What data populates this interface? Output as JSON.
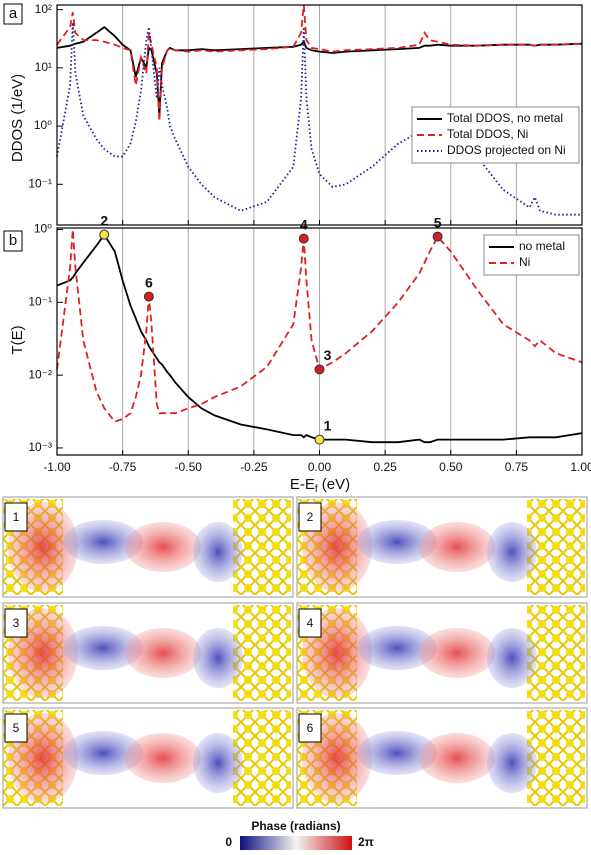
{
  "chart_data": [
    {
      "type": "line",
      "panel_label": "a",
      "ylabel": "DDOS (1/eV)",
      "log_y": true,
      "grid": true,
      "legend": "center right",
      "x": [
        -1.0,
        -0.95,
        -0.94,
        -0.93,
        -0.9,
        -0.85,
        -0.82,
        -0.78,
        -0.75,
        -0.72,
        -0.7,
        -0.68,
        -0.66,
        -0.65,
        -0.64,
        -0.62,
        -0.61,
        -0.6,
        -0.58,
        -0.57,
        -0.55,
        -0.5,
        -0.45,
        -0.4,
        -0.3,
        -0.2,
        -0.1,
        -0.07,
        -0.06,
        -0.05,
        -0.03,
        0,
        0.05,
        0.1,
        0.2,
        0.3,
        0.38,
        0.4,
        0.42,
        0.45,
        0.5,
        0.6,
        0.7,
        0.8,
        0.82,
        0.84,
        0.9,
        1.0
      ],
      "xlim": [
        -1,
        1
      ],
      "xticks": [
        -1,
        -0.75,
        -0.5,
        -0.25,
        0,
        0.25,
        0.5,
        0.75,
        1
      ],
      "ylim": [
        0.02,
        120
      ],
      "yticks": [
        {
          "value": 0.1,
          "label": "10⁻¹"
        },
        {
          "value": 1,
          "label": "10⁰"
        },
        {
          "value": 10,
          "label": "10¹"
        },
        {
          "value": 100,
          "label": "10²"
        }
      ],
      "series": [
        {
          "name": "Total DDOS, no metal",
          "color": "#000000",
          "dash": "solid",
          "values": [
            22,
            24,
            25,
            26,
            28,
            40,
            50,
            35,
            25,
            20,
            7,
            15,
            10,
            22,
            20,
            8,
            1.5,
            12,
            20,
            22,
            20,
            20,
            21,
            20,
            21,
            22,
            23,
            25,
            28,
            22,
            20,
            19,
            18,
            19,
            20,
            21,
            22,
            24,
            24,
            25,
            24,
            24,
            25,
            25,
            24,
            25,
            25,
            26
          ]
        },
        {
          "name": "Total DDOS, Ni",
          "color": "#e02020",
          "dash": "dashed",
          "values": [
            25,
            50,
            90,
            40,
            30,
            30,
            28,
            25,
            22,
            20,
            5,
            15,
            8,
            40,
            25,
            10,
            1.2,
            10,
            20,
            22,
            20,
            19,
            20,
            19,
            20,
            21,
            23,
            40,
            120,
            30,
            22,
            21,
            19,
            20,
            21,
            22,
            25,
            40,
            30,
            28,
            25,
            24,
            25,
            25,
            24,
            25,
            25,
            26
          ]
        },
        {
          "name": "DDOS projected on Ni",
          "color": "#1c1c9c",
          "dash": "dotted",
          "values": [
            0.3,
            5,
            60,
            8,
            1.5,
            0.6,
            0.4,
            0.3,
            0.3,
            0.5,
            1.2,
            4,
            30,
            50,
            20,
            3,
            10,
            5,
            2,
            1,
            0.6,
            0.2,
            0.1,
            0.06,
            0.035,
            0.05,
            0.2,
            3,
            50,
            3,
            0.4,
            0.15,
            0.09,
            0.1,
            0.2,
            0.5,
            0.8,
            0.9,
            1.0,
            1.1,
            0.8,
            0.3,
            0.08,
            0.04,
            0.06,
            0.035,
            0.03,
            0.03
          ]
        }
      ]
    },
    {
      "type": "line",
      "panel_label": "b",
      "ylabel": "T(E)",
      "log_y": true,
      "grid": true,
      "legend": "upper right",
      "xlabel": "E-E",
      "xlabel_sub": "f",
      "xlabel_unit": " (eV)",
      "x": [
        -1.0,
        -0.95,
        -0.94,
        -0.93,
        -0.9,
        -0.85,
        -0.82,
        -0.78,
        -0.75,
        -0.72,
        -0.7,
        -0.68,
        -0.66,
        -0.65,
        -0.64,
        -0.62,
        -0.61,
        -0.6,
        -0.58,
        -0.57,
        -0.55,
        -0.5,
        -0.45,
        -0.4,
        -0.3,
        -0.2,
        -0.1,
        -0.07,
        -0.06,
        -0.05,
        -0.03,
        0,
        0.05,
        0.1,
        0.2,
        0.3,
        0.38,
        0.4,
        0.42,
        0.45,
        0.5,
        0.6,
        0.7,
        0.8,
        0.82,
        0.84,
        0.9,
        1.0
      ],
      "xlim": [
        -1,
        1
      ],
      "xticks": [
        {
          "value": -1,
          "label": "-1.00"
        },
        {
          "value": -0.75,
          "label": "-0.75"
        },
        {
          "value": -0.5,
          "label": "-0.50"
        },
        {
          "value": -0.25,
          "label": "-0.25"
        },
        {
          "value": 0,
          "label": "0.00"
        },
        {
          "value": 0.25,
          "label": "0.25"
        },
        {
          "value": 0.5,
          "label": "0.50"
        },
        {
          "value": 0.75,
          "label": "0.75"
        },
        {
          "value": 1,
          "label": "1.00"
        }
      ],
      "ylim": [
        0.0008,
        1.05
      ],
      "yticks": [
        {
          "value": 0.001,
          "label": "10⁻³"
        },
        {
          "value": 0.01,
          "label": "10⁻²"
        },
        {
          "value": 0.1,
          "label": "10⁻¹"
        },
        {
          "value": 1,
          "label": "10⁰"
        }
      ],
      "series": [
        {
          "name": "no metal",
          "color": "#000000",
          "dash": "solid",
          "values": [
            0.17,
            0.2,
            0.22,
            0.25,
            0.35,
            0.6,
            0.85,
            0.5,
            0.2,
            0.09,
            0.06,
            0.04,
            0.03,
            0.025,
            0.022,
            0.017,
            0.015,
            0.014,
            0.011,
            0.01,
            0.008,
            0.005,
            0.0035,
            0.0028,
            0.0021,
            0.0018,
            0.0015,
            0.0015,
            0.0014,
            0.0015,
            0.0014,
            0.0013,
            0.0013,
            0.0013,
            0.0012,
            0.0012,
            0.0013,
            0.0012,
            0.0012,
            0.0013,
            0.0013,
            0.0013,
            0.0013,
            0.0014,
            0.0014,
            0.0014,
            0.0014,
            0.0016
          ]
        },
        {
          "name": "Ni",
          "color": "#e02020",
          "dash": "dashed",
          "values": [
            0.012,
            0.3,
            1.0,
            0.3,
            0.03,
            0.006,
            0.0035,
            0.0023,
            0.0025,
            0.003,
            0.005,
            0.01,
            0.04,
            0.12,
            0.05,
            0.004,
            0.003,
            0.003,
            0.003,
            0.003,
            0.003,
            0.0035,
            0.004,
            0.005,
            0.007,
            0.013,
            0.05,
            0.3,
            0.75,
            0.2,
            0.03,
            0.012,
            0.015,
            0.02,
            0.04,
            0.1,
            0.25,
            0.35,
            0.5,
            0.8,
            0.5,
            0.15,
            0.05,
            0.03,
            0.025,
            0.03,
            0.02,
            0.015
          ]
        }
      ],
      "points": [
        {
          "label": "1",
          "x": 0,
          "y": 0.0013,
          "color": "#f2e640"
        },
        {
          "label": "2",
          "x": -0.82,
          "y": 0.85,
          "color": "#f2e640"
        },
        {
          "label": "3",
          "x": 0,
          "y": 0.012,
          "color": "#d42020"
        },
        {
          "label": "4",
          "x": -0.06,
          "y": 0.75,
          "color": "#d42020"
        },
        {
          "label": "5",
          "x": 0.45,
          "y": 0.8,
          "color": "#d42020"
        },
        {
          "label": "6",
          "x": -0.65,
          "y": 0.12,
          "color": "#d42020"
        }
      ]
    }
  ],
  "orbitals": {
    "labels": [
      "1",
      "2",
      "3",
      "4",
      "5",
      "6"
    ]
  },
  "colorbar": {
    "title": "Phase (radians)",
    "min_label": "0",
    "max_label": "2π"
  }
}
